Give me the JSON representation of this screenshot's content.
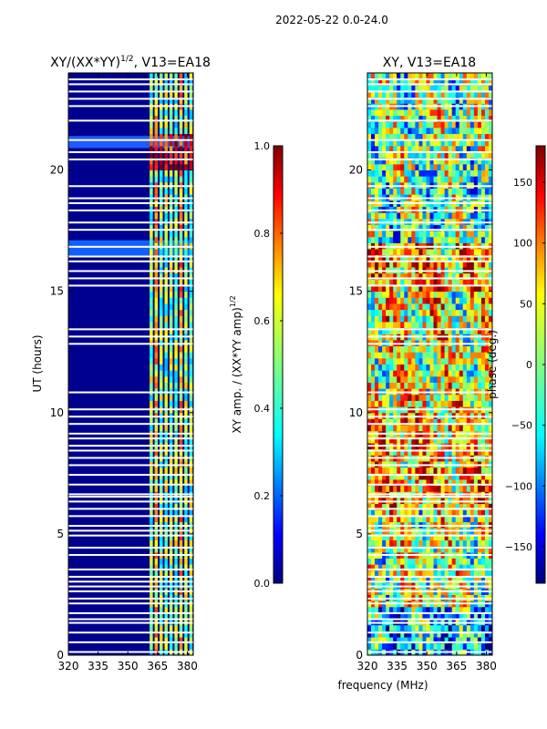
{
  "figure": {
    "suptitle": "2022-05-22 0.0-24.0",
    "xlabel": "frequency (MHz)"
  },
  "chart_data": [
    {
      "type": "heatmap",
      "title_main": "XY/(XX*YY)",
      "title_sup": "1/2",
      "title_suffix": ", V13=EA18",
      "ylabel": "UT (hours)",
      "xlim": [
        320,
        383
      ],
      "ylim": [
        0,
        24
      ],
      "xticks": [
        320,
        335,
        350,
        365,
        380
      ],
      "yticks": [
        0,
        5,
        10,
        15,
        20
      ],
      "colorbar": {
        "label_main": "XY amp. / (XX*YY amp)",
        "label_sup": "1/2",
        "range": [
          0.0,
          1.0
        ],
        "ticks": [
          "0.0",
          "0.2",
          "0.4",
          "0.6",
          "0.8",
          "1.0"
        ],
        "tick_values": [
          0.0,
          0.2,
          0.4,
          0.6,
          0.8,
          1.0
        ],
        "colormap": "jet"
      }
    },
    {
      "type": "heatmap",
      "title": "XY, V13=EA18",
      "xlim": [
        320,
        383
      ],
      "ylim": [
        0,
        24
      ],
      "xticks": [
        320,
        335,
        350,
        365,
        380
      ],
      "yticks": [
        0,
        5,
        10,
        15,
        20
      ],
      "colorbar": {
        "label": "phase (deg.)",
        "range": [
          -180,
          180
        ],
        "ticks": [
          "150",
          "100",
          "50",
          "0",
          "−50",
          "−100",
          "−150"
        ],
        "tick_values": [
          150,
          100,
          50,
          0,
          -50,
          -100,
          -150
        ],
        "colormap": "jet"
      }
    }
  ],
  "colors": {
    "jet": [
      "#00007f",
      "#0000ff",
      "#007fff",
      "#00ffff",
      "#7fff7f",
      "#ffff00",
      "#ff7f00",
      "#ff0000",
      "#7f0000"
    ],
    "axis": "#000000"
  }
}
